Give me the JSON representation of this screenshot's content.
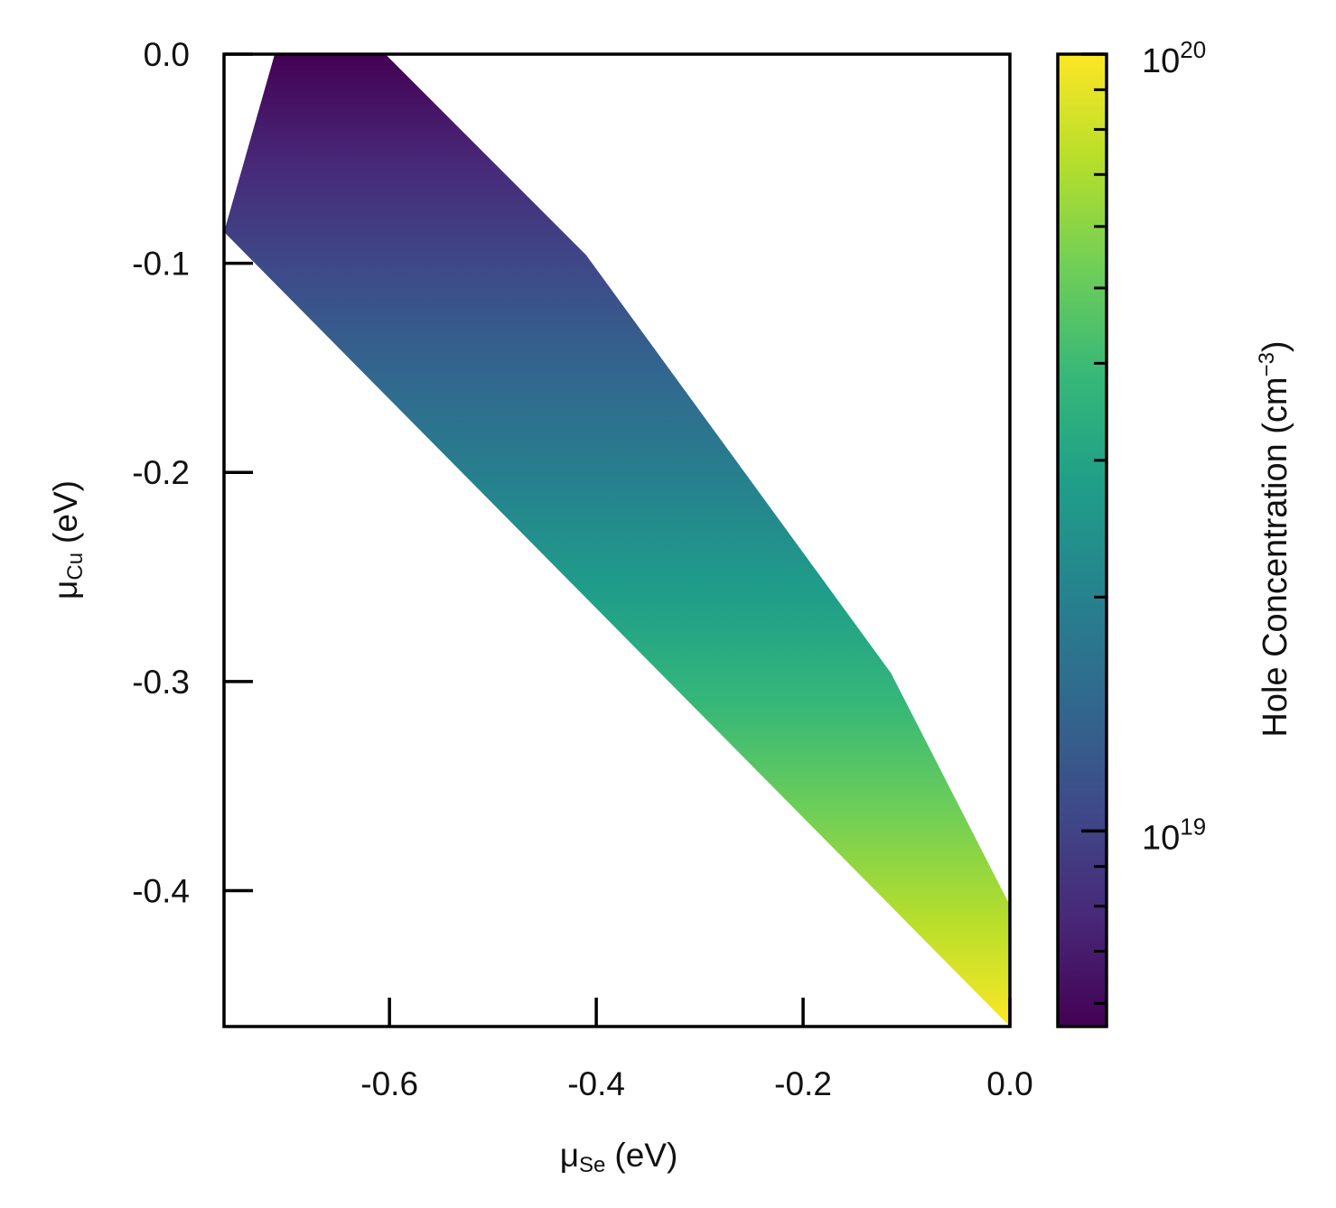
{
  "chart_data": {
    "type": "heatmap",
    "title": "",
    "xlabel": {
      "symbol": "μ",
      "sub": "Se",
      "unit": "(eV)"
    },
    "ylabel": {
      "symbol": "μ",
      "sub": "Cu",
      "unit": "(eV)"
    },
    "xlim": [
      -0.76,
      0.0
    ],
    "ylim": [
      -0.465,
      0.0
    ],
    "xticks": [
      {
        "value": -0.6,
        "label": "-0.6"
      },
      {
        "value": -0.4,
        "label": "-0.4"
      },
      {
        "value": -0.2,
        "label": "-0.2"
      },
      {
        "value": 0.0,
        "label": "0.0"
      }
    ],
    "yticks": [
      {
        "value": 0.0,
        "label": "0.0"
      },
      {
        "value": -0.1,
        "label": "-0.1"
      },
      {
        "value": -0.2,
        "label": "-0.2"
      },
      {
        "value": -0.3,
        "label": "-0.3"
      },
      {
        "value": -0.4,
        "label": "-0.4"
      }
    ],
    "grid": false,
    "stability_region": [
      {
        "x": -0.711,
        "y": 0.0
      },
      {
        "x": -0.604,
        "y": 0.0
      },
      {
        "x": -0.41,
        "y": -0.096
      },
      {
        "x": -0.115,
        "y": -0.296
      },
      {
        "x": 0.0,
        "y": -0.407
      },
      {
        "x": 0.0,
        "y": -0.465
      },
      {
        "x": -0.76,
        "y": -0.085
      }
    ],
    "color_mapping": {
      "variable": "Hole Concentration",
      "direction": "increases as μ_Cu decreases",
      "value_at_top": 5.6e+18,
      "value_at_bottom": 1e+20,
      "colormap": "viridis",
      "colors": [
        "#440154",
        "#482878",
        "#3e4a89",
        "#31688e",
        "#26828e",
        "#1f9e89",
        "#35b779",
        "#6ece58",
        "#b5de2b",
        "#fde725"
      ]
    },
    "colorbar": {
      "label": "Hole Concentration (cm",
      "label_exponent": "−3",
      "label_close": ")",
      "scale": "log",
      "range": [
        5.6e+18,
        1e+20
      ],
      "ticks": [
        {
          "value": 1e+19,
          "base": "10",
          "exponent": "19"
        },
        {
          "value": 1e+20,
          "base": "10",
          "exponent": "20"
        }
      ],
      "minor_ticks": [
        6e+18,
        7e+18,
        8e+18,
        9e+18,
        2e+19,
        3e+19,
        4e+19,
        5e+19,
        6e+19,
        7e+19,
        8e+19,
        9e+19
      ]
    }
  }
}
